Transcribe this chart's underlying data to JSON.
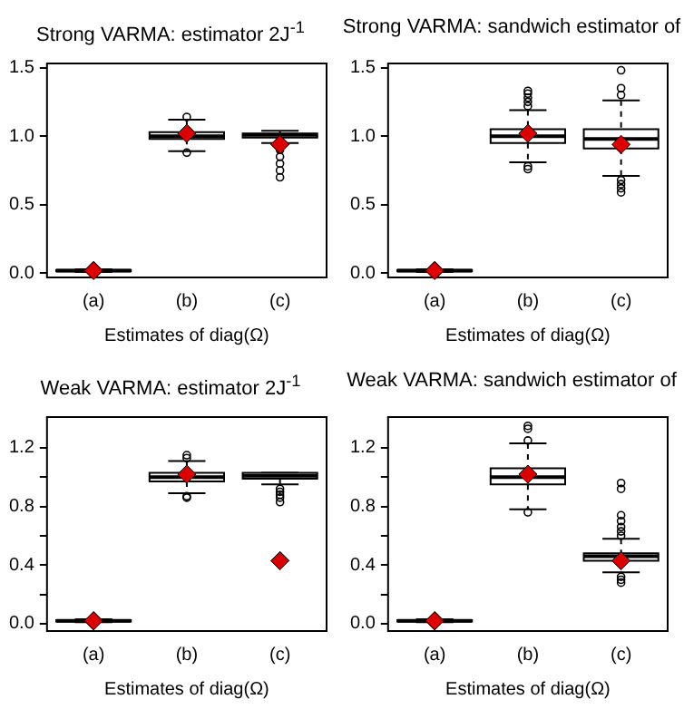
{
  "chart_data": [
    {
      "type": "box",
      "title": "Strong VARMA: estimator  2J$^{-1}$",
      "xlabel": "Estimates of diag(Ω)",
      "categories": [
        "(a)",
        "(b)",
        "(c)"
      ],
      "boxes": [
        {
          "low": 0.01,
          "q1": 0.015,
          "median": 0.02,
          "q3": 0.025,
          "high": 0.03
        },
        {
          "low": 0.89,
          "q1": 0.98,
          "median": 1.0,
          "q3": 1.03,
          "high": 1.12,
          "outliers": [
            1.14,
            0.88
          ]
        },
        {
          "low": 0.95,
          "q1": 0.99,
          "median": 1.01,
          "q3": 1.02,
          "high": 1.04,
          "outliers": [
            0.9,
            0.85,
            0.8,
            0.75,
            0.7
          ]
        }
      ],
      "series": [
        {
          "type": "scatter",
          "values": [
            0.02,
            1.02,
            0.94
          ],
          "color": "#dd0000",
          "marker": "diamond"
        }
      ],
      "ylim": [
        -0.03,
        1.53
      ],
      "yticks": [
        {
          "value": 0,
          "label": "0.0"
        },
        {
          "value": 0.5,
          "label": "0.5"
        },
        {
          "value": 1,
          "label": "1.0"
        },
        {
          "value": 1.5,
          "label": "1.5"
        }
      ],
      "grid": false,
      "legend": false
    },
    {
      "type": "box",
      "title": "Strong VARMA: sandwich estimator of",
      "xlabel": "Estimates of diag(Ω)",
      "categories": [
        "(a)",
        "(b)",
        "(c)"
      ],
      "boxes": [
        {
          "low": 0.01,
          "q1": 0.015,
          "median": 0.02,
          "q3": 0.025,
          "high": 0.03
        },
        {
          "low": 0.81,
          "q1": 0.95,
          "median": 1.0,
          "q3": 1.05,
          "high": 1.19,
          "outliers": [
            1.22,
            1.25,
            1.28,
            1.31,
            1.33,
            0.78,
            0.76
          ]
        },
        {
          "low": 0.71,
          "q1": 0.91,
          "median": 0.98,
          "q3": 1.05,
          "high": 1.26,
          "outliers": [
            1.3,
            1.35,
            1.48,
            0.68,
            0.65,
            0.62,
            0.59
          ]
        }
      ],
      "series": [
        {
          "type": "scatter",
          "values": [
            0.02,
            1.02,
            0.94
          ],
          "color": "#dd0000",
          "marker": "diamond"
        }
      ],
      "ylim": [
        -0.03,
        1.53
      ],
      "yticks": [
        {
          "value": 0,
          "label": "0.0"
        },
        {
          "value": 0.5,
          "label": "0.5"
        },
        {
          "value": 1,
          "label": "1.0"
        },
        {
          "value": 1.5,
          "label": "1.5"
        }
      ],
      "grid": false,
      "legend": false
    },
    {
      "type": "box",
      "title": "Weak VARMA: estimator  2J$^{-1}$",
      "xlabel": "Estimates of diag(Ω)",
      "categories": [
        "(a)",
        "(b)",
        "(c)"
      ],
      "boxes": [
        {
          "low": 0.01,
          "q1": 0.015,
          "median": 0.02,
          "q3": 0.025,
          "high": 0.03
        },
        {
          "low": 0.89,
          "q1": 0.97,
          "median": 1.0,
          "q3": 1.03,
          "high": 1.11,
          "outliers": [
            1.13,
            1.15,
            0.87,
            0.86
          ]
        },
        {
          "low": 0.95,
          "q1": 0.99,
          "median": 1.01,
          "q3": 1.03,
          "high": 1.03,
          "outliers": [
            0.92,
            0.9,
            0.88,
            0.86,
            0.83
          ]
        }
      ],
      "series": [
        {
          "type": "scatter",
          "values": [
            0.02,
            1.02,
            0.43
          ],
          "color": "#dd0000",
          "marker": "diamond"
        }
      ],
      "ylim": [
        -0.05,
        1.41
      ],
      "yticks": [
        {
          "value": 0,
          "label": "0.0"
        },
        {
          "value": 0.2,
          "label": null
        },
        {
          "value": 0.4,
          "label": "0.4"
        },
        {
          "value": 0.6,
          "label": null
        },
        {
          "value": 0.8,
          "label": "0.8"
        },
        {
          "value": 1.0,
          "label": null
        },
        {
          "value": 1.2,
          "label": "1.2"
        }
      ],
      "grid": false,
      "legend": false
    },
    {
      "type": "box",
      "title": "Weak VARMA: sandwich estimator of",
      "xlabel": "Estimates of diag(Ω)",
      "categories": [
        "(a)",
        "(b)",
        "(c)"
      ],
      "boxes": [
        {
          "low": 0.01,
          "q1": 0.015,
          "median": 0.02,
          "q3": 0.025,
          "high": 0.03
        },
        {
          "low": 0.78,
          "q1": 0.95,
          "median": 1.0,
          "q3": 1.06,
          "high": 1.23,
          "outliers": [
            1.25,
            1.33,
            1.35,
            0.76
          ]
        },
        {
          "low": 0.35,
          "q1": 0.43,
          "median": 0.46,
          "q3": 0.48,
          "high": 0.58,
          "outliers": [
            0.6,
            0.63,
            0.66,
            0.7,
            0.74,
            0.92,
            0.96,
            0.32,
            0.3,
            0.28
          ]
        }
      ],
      "series": [
        {
          "type": "scatter",
          "values": [
            0.02,
            1.02,
            0.43
          ],
          "color": "#dd0000",
          "marker": "diamond"
        }
      ],
      "ylim": [
        -0.05,
        1.41
      ],
      "yticks": [
        {
          "value": 0,
          "label": "0.0"
        },
        {
          "value": 0.2,
          "label": null
        },
        {
          "value": 0.4,
          "label": "0.4"
        },
        {
          "value": 0.6,
          "label": null
        },
        {
          "value": 0.8,
          "label": "0.8"
        },
        {
          "value": 1.0,
          "label": null
        },
        {
          "value": 1.2,
          "label": "1.2"
        }
      ],
      "grid": false,
      "legend": false
    }
  ]
}
